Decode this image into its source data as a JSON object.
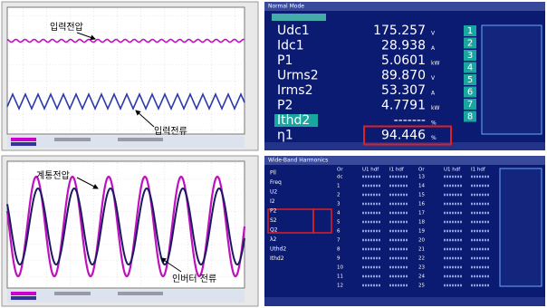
{
  "scope_top": {
    "labels": [
      "입력전압",
      "입력전류"
    ]
  },
  "scope_bottom": {
    "labels": [
      "계통전압",
      "인버터 전류"
    ]
  },
  "meter": {
    "mode": "Normal Mode",
    "readings": [
      {
        "name": "Udc1",
        "value": "175.257",
        "unit": "V"
      },
      {
        "name": "Idc1",
        "value": "28.938",
        "unit": "A"
      },
      {
        "name": "P1",
        "value": "5.0601",
        "unit": "kW"
      },
      {
        "name": "Urms2",
        "value": "89.870",
        "unit": "V"
      },
      {
        "name": "Irms2",
        "value": "53.307",
        "unit": "A"
      },
      {
        "name": "P2",
        "value": "4.7791",
        "unit": "kW"
      },
      {
        "name": "Ithd2",
        "value": "-------",
        "unit": "%"
      },
      {
        "name": "η1",
        "value": "94.446",
        "unit": "%"
      }
    ],
    "keys": [
      "1",
      "2",
      "3",
      "4",
      "5",
      "6",
      "7",
      "8"
    ]
  },
  "harmonics": {
    "title": "Wide-Band Harmonics",
    "params": [
      "Pll",
      "Freq",
      "U2",
      "I2",
      "P2",
      "S2",
      "Q2",
      "λ2",
      "Uthd2",
      "Ithd2"
    ],
    "headers": [
      "Or",
      "U1 hdf",
      "I1 hdf",
      "Or",
      "U1 hdf",
      "I1 hdf"
    ],
    "orders_left": [
      "dc",
      "1",
      "2",
      "3",
      "4",
      "5",
      "6",
      "7",
      "8",
      "9",
      "10",
      "11",
      "12"
    ],
    "orders_right": [
      "13",
      "14",
      "15",
      "16",
      "17",
      "18",
      "19",
      "20",
      "21",
      "22",
      "23",
      "24",
      "25"
    ]
  }
}
